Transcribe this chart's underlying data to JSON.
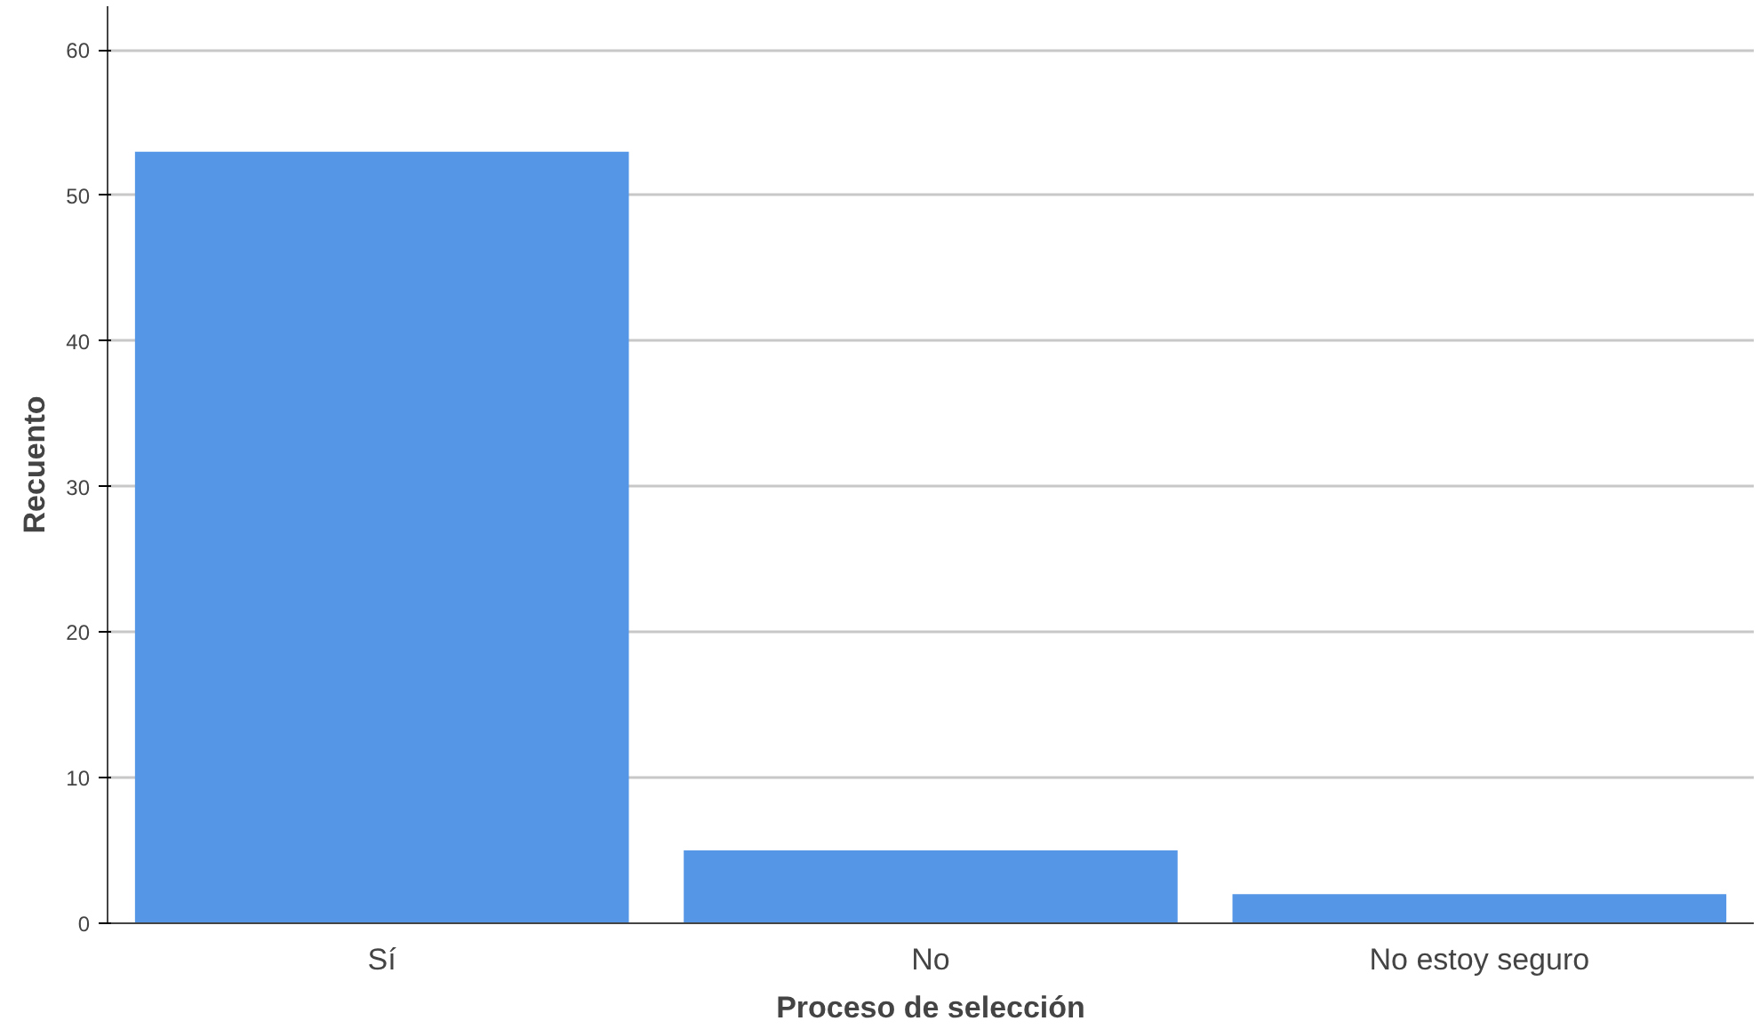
{
  "chart_data": {
    "type": "bar",
    "xlabel": "Proceso de selección",
    "ylabel": "Recuento",
    "categories": [
      "Sí",
      "No",
      "No estoy seguro"
    ],
    "values": [
      53,
      5,
      2
    ],
    "color": "#5596e6",
    "ylim": [
      0,
      63
    ],
    "yticks": [
      0,
      10,
      20,
      30,
      40,
      50,
      60
    ],
    "grid": "y"
  }
}
